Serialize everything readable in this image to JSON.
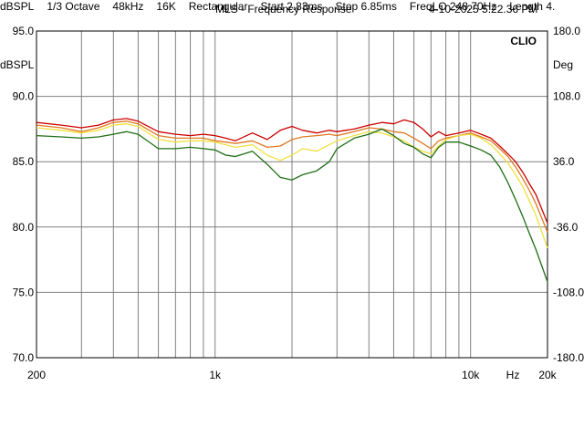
{
  "header": {
    "title": "MLS - Frequency Response",
    "timestamp": "4-10-2025 5.22.36 PM"
  },
  "chart_data": {
    "type": "line",
    "brand": "CLIO",
    "xscale": "log",
    "xlim": [
      200,
      20000
    ],
    "ylim": [
      70,
      95
    ],
    "ylim_right": [
      -180,
      180
    ],
    "ylabel": "dBSPL",
    "ylabel_right": "Deg",
    "xlabel": "Hz",
    "yticks": [
      {
        "v": 95,
        "label": "95.0"
      },
      {
        "v": 90,
        "label": "90.0"
      },
      {
        "v": 85,
        "label": "85.0"
      },
      {
        "v": 80,
        "label": "80.0"
      },
      {
        "v": 75,
        "label": "75.0"
      },
      {
        "v": 70,
        "label": "70.0"
      }
    ],
    "yticks_right": [
      {
        "v": 180,
        "label": "180.0"
      },
      {
        "v": 108,
        "label": "108.0"
      },
      {
        "v": 36,
        "label": "36.0"
      },
      {
        "v": -36,
        "label": "-36.0"
      },
      {
        "v": -108,
        "label": "-108.0"
      },
      {
        "v": -180,
        "label": "-180.0"
      }
    ],
    "xticks": [
      {
        "v": 200,
        "label": "200"
      },
      {
        "v": 1000,
        "label": "1k"
      },
      {
        "v": 10000,
        "label": "10k"
      },
      {
        "v": 20000,
        "label": "20k"
      }
    ],
    "grid": true,
    "grid_x": [
      200,
      300,
      400,
      500,
      600,
      700,
      800,
      900,
      1000,
      2000,
      3000,
      4000,
      5000,
      6000,
      7000,
      8000,
      9000,
      10000,
      20000
    ],
    "series": [
      {
        "color": "#cc0000",
        "x": [
          200,
          250,
          300,
          350,
          400,
          450,
          500,
          600,
          700,
          800,
          900,
          1000,
          1100,
          1200,
          1400,
          1600,
          1800,
          2000,
          2200,
          2500,
          2800,
          3000,
          3500,
          4000,
          4500,
          5000,
          5500,
          6000,
          6500,
          7000,
          7500,
          8000,
          9000,
          10000,
          11000,
          12000,
          13000,
          14000,
          15000,
          16000,
          17000,
          18000,
          20000
        ],
        "y": [
          88.0,
          87.8,
          87.6,
          87.8,
          88.2,
          88.3,
          88.1,
          87.3,
          87.1,
          87.0,
          87.1,
          87.0,
          86.8,
          86.6,
          87.2,
          86.7,
          87.4,
          87.7,
          87.4,
          87.2,
          87.4,
          87.3,
          87.5,
          87.8,
          88.0,
          87.9,
          88.2,
          88.0,
          87.5,
          86.9,
          87.3,
          87.0,
          87.2,
          87.4,
          87.1,
          86.8,
          86.2,
          85.6,
          85.0,
          84.2,
          83.3,
          82.5,
          80.3
        ]
      },
      {
        "color": "#e07820",
        "x": [
          200,
          250,
          300,
          350,
          400,
          450,
          500,
          600,
          700,
          800,
          900,
          1000,
          1100,
          1200,
          1400,
          1600,
          1800,
          2000,
          2200,
          2500,
          2800,
          3000,
          3500,
          4000,
          4500,
          5000,
          5500,
          6000,
          6500,
          7000,
          7500,
          8000,
          9000,
          10000,
          11000,
          12000,
          13000,
          14000,
          15000,
          16000,
          17000,
          18000,
          20000
        ],
        "y": [
          87.8,
          87.6,
          87.3,
          87.6,
          88.0,
          88.1,
          87.9,
          87.0,
          86.8,
          86.8,
          86.8,
          86.6,
          86.5,
          86.4,
          86.6,
          86.1,
          86.2,
          86.7,
          86.9,
          87.0,
          87.1,
          87.0,
          87.3,
          87.6,
          87.5,
          87.3,
          87.2,
          86.8,
          86.4,
          86.0,
          86.6,
          86.8,
          87.0,
          87.2,
          86.9,
          86.6,
          86.0,
          85.4,
          84.6,
          83.7,
          82.8,
          81.8,
          79.6
        ]
      },
      {
        "color": "#f0e040",
        "x": [
          200,
          250,
          300,
          350,
          400,
          450,
          500,
          600,
          700,
          800,
          900,
          1000,
          1100,
          1200,
          1400,
          1600,
          1800,
          2000,
          2200,
          2500,
          2800,
          3000,
          3500,
          4000,
          4500,
          5000,
          5500,
          6000,
          6500,
          7000,
          7500,
          8000,
          9000,
          10000,
          11000,
          12000,
          13000,
          14000,
          15000,
          16000,
          17000,
          18000,
          20000
        ],
        "y": [
          87.6,
          87.4,
          87.2,
          87.4,
          87.8,
          87.9,
          87.7,
          86.7,
          86.5,
          86.6,
          86.6,
          86.5,
          86.3,
          86.1,
          86.3,
          85.5,
          85.1,
          85.5,
          86.0,
          85.8,
          86.3,
          86.6,
          87.0,
          87.3,
          87.2,
          86.9,
          86.6,
          86.1,
          85.8,
          85.6,
          86.2,
          86.7,
          87.0,
          87.1,
          86.8,
          86.3,
          85.6,
          84.9,
          84.0,
          83.1,
          82.0,
          80.9,
          78.4
        ]
      },
      {
        "color": "#1e6e14",
        "x": [
          200,
          250,
          300,
          350,
          400,
          450,
          500,
          600,
          700,
          800,
          900,
          1000,
          1100,
          1200,
          1400,
          1600,
          1800,
          2000,
          2200,
          2500,
          2800,
          3000,
          3500,
          4000,
          4500,
          5000,
          5500,
          6000,
          6500,
          7000,
          7500,
          8000,
          9000,
          10000,
          11000,
          12000,
          13000,
          14000,
          15000,
          16000,
          17000,
          18000,
          20000
        ],
        "y": [
          87.0,
          86.9,
          86.8,
          86.9,
          87.1,
          87.3,
          87.1,
          86.0,
          86.0,
          86.1,
          86.0,
          85.9,
          85.5,
          85.4,
          85.8,
          84.8,
          83.8,
          83.6,
          84.0,
          84.3,
          85.0,
          86.0,
          86.8,
          87.1,
          87.5,
          87.0,
          86.4,
          86.1,
          85.6,
          85.3,
          86.1,
          86.5,
          86.5,
          86.2,
          85.9,
          85.5,
          84.6,
          83.4,
          82.1,
          80.8,
          79.5,
          78.3,
          75.8
        ]
      }
    ]
  },
  "footer": {
    "items": [
      "dBSPL",
      "1/3 Octave",
      "48kHz",
      "16K",
      "Rectangular",
      "Start 2.83ms",
      "Stop 6.85ms",
      "FreqLO 248.70Hz",
      "Length 4."
    ]
  }
}
